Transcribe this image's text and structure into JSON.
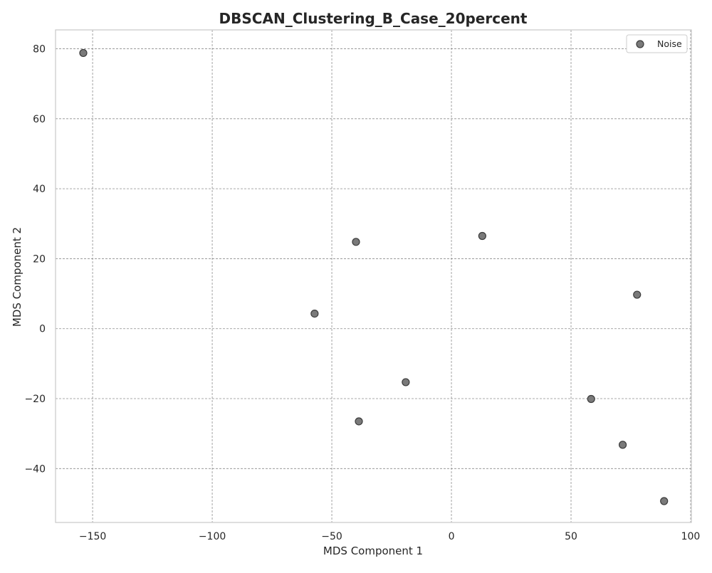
{
  "chart_data": {
    "type": "scatter",
    "title": "DBSCAN_Clustering_B_Case_20percent",
    "xlabel": "MDS Component 1",
    "ylabel": "MDS Component 2",
    "xlim": [
      -165.5,
      100.3
    ],
    "ylim": [
      -55.4,
      85.4
    ],
    "xticks": [
      -150,
      -100,
      -50,
      0,
      50,
      100
    ],
    "xtick_labels": [
      "−150",
      "−100",
      "−50",
      "0",
      "50",
      "100"
    ],
    "yticks": [
      -40,
      -20,
      0,
      20,
      40,
      60,
      80
    ],
    "ytick_labels": [
      "−40",
      "−20",
      "0",
      "20",
      "40",
      "60",
      "80"
    ],
    "grid": true,
    "legend_position": "top-right",
    "series": [
      {
        "name": "Noise",
        "color": "#7a7a7a",
        "edge_color": "#3c3c3c",
        "points": [
          {
            "x": -153.9,
            "y": 78.8
          },
          {
            "x": -39.9,
            "y": 24.8
          },
          {
            "x": 12.9,
            "y": 26.5
          },
          {
            "x": -57.2,
            "y": 4.3
          },
          {
            "x": 77.6,
            "y": 9.7
          },
          {
            "x": -19.1,
            "y": -15.3
          },
          {
            "x": 58.4,
            "y": -20.1
          },
          {
            "x": -38.7,
            "y": -26.5
          },
          {
            "x": 71.6,
            "y": -33.2
          },
          {
            "x": 88.9,
            "y": -49.3
          }
        ]
      }
    ]
  }
}
